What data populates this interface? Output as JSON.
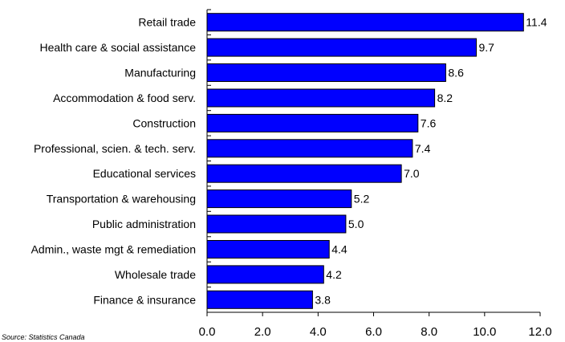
{
  "chart_data": {
    "type": "bar",
    "orientation": "horizontal",
    "categories": [
      "Retail trade",
      "Health care & social assistance",
      "Manufacturing",
      "Accommodation & food serv.",
      "Construction",
      "Professional, scien. & tech. serv.",
      "Educational services",
      "Transportation & warehousing",
      "Public administration",
      "Admin., waste mgt & remediation",
      "Wholesale trade",
      "Finance & insurance"
    ],
    "values": [
      11.4,
      9.7,
      8.6,
      8.2,
      7.6,
      7.4,
      7.0,
      5.2,
      5.0,
      4.4,
      4.2,
      3.8
    ],
    "value_labels": [
      "11.4",
      "9.7",
      "8.6",
      "8.2",
      "7.6",
      "7.4",
      "7.0",
      "5.2",
      "5.0",
      "4.4",
      "4.2",
      "3.8"
    ],
    "xlim": [
      0,
      12
    ],
    "xticks": [
      "0.0",
      "2.0",
      "4.0",
      "6.0",
      "8.0",
      "10.0",
      "12.0"
    ],
    "bar_color": "#0000ff",
    "grid": false,
    "legend": "none",
    "source": "Source: Statistics Canada"
  }
}
